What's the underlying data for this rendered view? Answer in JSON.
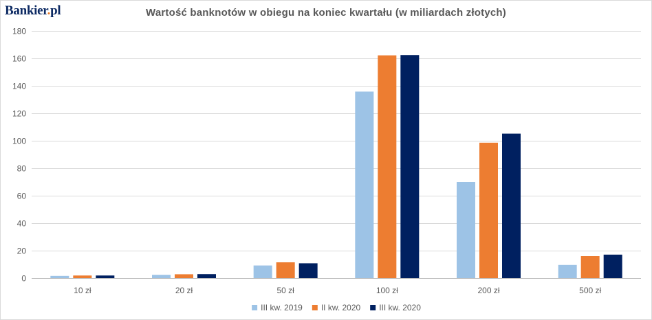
{
  "logo": {
    "main": "Bankier",
    "tld": "pl"
  },
  "chart_data": {
    "type": "bar",
    "title": "Wartość  banknotów  w obiegu na koniec  kwartału  (w miliardach  złotych)",
    "categories": [
      "10 zł",
      "20 zł",
      "50 zł",
      "100 zł",
      "200 zł",
      "500 zł"
    ],
    "series": [
      {
        "name": "III kw. 2019",
        "color": "#9dc3e6",
        "values": [
          1.6,
          2.4,
          9.2,
          135.8,
          70,
          9.6
        ]
      },
      {
        "name": "II kw. 2020",
        "color": "#ed7d31",
        "values": [
          1.9,
          2.8,
          11.5,
          162.2,
          98.6,
          16
        ]
      },
      {
        "name": "III kw. 2020",
        "color": "#002060",
        "values": [
          1.9,
          2.9,
          10.8,
          162.4,
          105.2,
          17.1
        ]
      }
    ],
    "ylim": [
      0,
      180
    ],
    "yticks": [
      0,
      20,
      40,
      60,
      80,
      100,
      120,
      140,
      160,
      180
    ],
    "grid": true,
    "legend": "bottom-center",
    "xlabel": "",
    "ylabel": ""
  }
}
